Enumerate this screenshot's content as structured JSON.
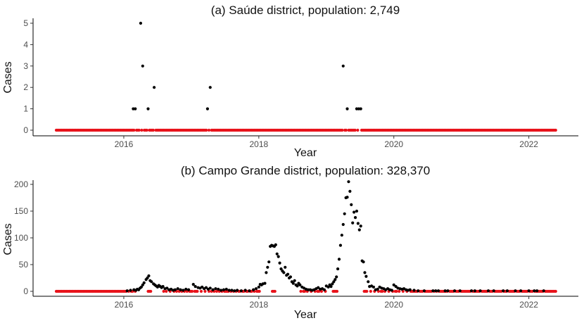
{
  "chart_data": [
    {
      "type": "scatter",
      "title": "(a) Saúde district, population: 2,749",
      "xlabel": "Year",
      "ylabel": "Cases",
      "x_range": [
        2015.0,
        2022.4
      ],
      "ylim": [
        0,
        5
      ],
      "x_ticks": [
        2016,
        2018,
        2020,
        2022
      ],
      "y_ticks": [
        0,
        1,
        2,
        3,
        4,
        5
      ],
      "grid": false,
      "legend": "none",
      "zero_color": "#e8131b",
      "point_color": "#000000",
      "zero_weeks_span": [
        2015.0,
        2022.4
      ],
      "series": [
        {
          "values": [
            [
              2016.14,
              1
            ],
            [
              2016.17,
              1
            ],
            [
              2016.25,
              5
            ],
            [
              2016.28,
              3
            ],
            [
              2016.36,
              1
            ],
            [
              2016.45,
              2
            ],
            [
              2017.24,
              1
            ],
            [
              2017.28,
              2
            ],
            [
              2019.25,
              3
            ],
            [
              2019.31,
              1
            ],
            [
              2019.45,
              1
            ],
            [
              2019.48,
              1
            ],
            [
              2019.51,
              1
            ]
          ]
        }
      ]
    },
    {
      "type": "scatter",
      "title": "(b) Campo Grande district, population: 328,370",
      "xlabel": "Year",
      "ylabel": "Cases",
      "x_range": [
        2015.0,
        2022.4
      ],
      "ylim": [
        0,
        215
      ],
      "x_ticks": [
        2016,
        2018,
        2020,
        2022
      ],
      "y_ticks": [
        0,
        50,
        100,
        150,
        200
      ],
      "grid": false,
      "legend": "none",
      "zero_color": "#e8131b",
      "point_color": "#000000",
      "series": [
        {
          "values": [
            [
              2016.05,
              1
            ],
            [
              2016.1,
              2
            ],
            [
              2016.15,
              3
            ],
            [
              2016.18,
              2
            ],
            [
              2016.2,
              4
            ],
            [
              2016.22,
              3
            ],
            [
              2016.24,
              6
            ],
            [
              2016.26,
              8
            ],
            [
              2016.28,
              12
            ],
            [
              2016.3,
              16
            ],
            [
              2016.33,
              22
            ],
            [
              2016.35,
              25
            ],
            [
              2016.37,
              29
            ],
            [
              2016.39,
              20
            ],
            [
              2016.41,
              18
            ],
            [
              2016.44,
              14
            ],
            [
              2016.46,
              12
            ],
            [
              2016.48,
              10
            ],
            [
              2016.5,
              8
            ],
            [
              2016.52,
              11
            ],
            [
              2016.54,
              9
            ],
            [
              2016.56,
              7
            ],
            [
              2016.58,
              9
            ],
            [
              2016.61,
              5
            ],
            [
              2016.64,
              6
            ],
            [
              2016.67,
              3
            ],
            [
              2016.7,
              4
            ],
            [
              2016.73,
              2
            ],
            [
              2016.76,
              3
            ],
            [
              2016.8,
              5
            ],
            [
              2016.84,
              3
            ],
            [
              2016.88,
              2
            ],
            [
              2016.92,
              4
            ],
            [
              2016.96,
              3
            ],
            [
              2017.03,
              13
            ],
            [
              2017.06,
              9
            ],
            [
              2017.1,
              7
            ],
            [
              2017.13,
              6
            ],
            [
              2017.16,
              8
            ],
            [
              2017.19,
              5
            ],
            [
              2017.22,
              7
            ],
            [
              2017.25,
              4
            ],
            [
              2017.28,
              6
            ],
            [
              2017.32,
              3
            ],
            [
              2017.36,
              5
            ],
            [
              2017.4,
              4
            ],
            [
              2017.44,
              2
            ],
            [
              2017.48,
              3
            ],
            [
              2017.52,
              4
            ],
            [
              2017.56,
              2
            ],
            [
              2017.6,
              2
            ],
            [
              2017.64,
              1
            ],
            [
              2017.68,
              2
            ],
            [
              2017.74,
              1
            ],
            [
              2017.8,
              2
            ],
            [
              2017.86,
              1
            ],
            [
              2017.92,
              3
            ],
            [
              2017.96,
              5
            ],
            [
              2018.0,
              8
            ],
            [
              2018.02,
              13
            ],
            [
              2018.04,
              12
            ],
            [
              2018.06,
              14
            ],
            [
              2018.09,
              15
            ],
            [
              2018.11,
              35
            ],
            [
              2018.13,
              45
            ],
            [
              2018.15,
              55
            ],
            [
              2018.17,
              84
            ],
            [
              2018.19,
              86
            ],
            [
              2018.21,
              85
            ],
            [
              2018.23,
              84
            ],
            [
              2018.25,
              87
            ],
            [
              2018.27,
              70
            ],
            [
              2018.29,
              65
            ],
            [
              2018.31,
              53
            ],
            [
              2018.33,
              42
            ],
            [
              2018.35,
              38
            ],
            [
              2018.37,
              35
            ],
            [
              2018.39,
              45
            ],
            [
              2018.41,
              30
            ],
            [
              2018.43,
              32
            ],
            [
              2018.45,
              25
            ],
            [
              2018.47,
              27
            ],
            [
              2018.49,
              18
            ],
            [
              2018.51,
              15
            ],
            [
              2018.53,
              20
            ],
            [
              2018.55,
              12
            ],
            [
              2018.57,
              10
            ],
            [
              2018.59,
              15
            ],
            [
              2018.61,
              12
            ],
            [
              2018.64,
              8
            ],
            [
              2018.67,
              6
            ],
            [
              2018.7,
              4
            ],
            [
              2018.73,
              3
            ],
            [
              2018.76,
              3
            ],
            [
              2018.79,
              2
            ],
            [
              2018.82,
              3
            ],
            [
              2018.85,
              5
            ],
            [
              2018.88,
              7
            ],
            [
              2018.91,
              4
            ],
            [
              2018.94,
              5
            ],
            [
              2018.97,
              3
            ],
            [
              2019.0,
              10
            ],
            [
              2019.03,
              8
            ],
            [
              2019.05,
              12
            ],
            [
              2019.07,
              9
            ],
            [
              2019.09,
              14
            ],
            [
              2019.11,
              18
            ],
            [
              2019.13,
              22
            ],
            [
              2019.15,
              27
            ],
            [
              2019.17,
              42
            ],
            [
              2019.19,
              60
            ],
            [
              2019.21,
              86
            ],
            [
              2019.23,
              105
            ],
            [
              2019.25,
              125
            ],
            [
              2019.27,
              145
            ],
            [
              2019.29,
              175
            ],
            [
              2019.31,
              176
            ],
            [
              2019.33,
              205
            ],
            [
              2019.35,
              187
            ],
            [
              2019.37,
              162
            ],
            [
              2019.39,
              128
            ],
            [
              2019.41,
              148
            ],
            [
              2019.43,
              138
            ],
            [
              2019.45,
              150
            ],
            [
              2019.47,
              127
            ],
            [
              2019.49,
              115
            ],
            [
              2019.51,
              122
            ],
            [
              2019.53,
              57
            ],
            [
              2019.55,
              55
            ],
            [
              2019.57,
              35
            ],
            [
              2019.59,
              28
            ],
            [
              2019.62,
              18
            ],
            [
              2019.64,
              9
            ],
            [
              2019.67,
              10
            ],
            [
              2019.7,
              8
            ],
            [
              2019.73,
              3
            ],
            [
              2019.76,
              4
            ],
            [
              2019.79,
              8
            ],
            [
              2019.82,
              6
            ],
            [
              2019.85,
              5
            ],
            [
              2019.88,
              3
            ],
            [
              2019.91,
              5
            ],
            [
              2019.94,
              3
            ],
            [
              2019.97,
              2
            ],
            [
              2020.0,
              12
            ],
            [
              2020.03,
              9
            ],
            [
              2020.06,
              6
            ],
            [
              2020.09,
              5
            ],
            [
              2020.12,
              4
            ],
            [
              2020.15,
              5
            ],
            [
              2020.18,
              3
            ],
            [
              2020.21,
              2
            ],
            [
              2020.24,
              3
            ],
            [
              2020.3,
              2
            ],
            [
              2020.36,
              1
            ],
            [
              2020.45,
              1
            ],
            [
              2020.58,
              1
            ],
            [
              2020.62,
              1
            ],
            [
              2020.66,
              1
            ],
            [
              2020.76,
              1
            ],
            [
              2020.8,
              1
            ],
            [
              2020.9,
              1
            ],
            [
              2020.98,
              1
            ],
            [
              2021.15,
              1
            ],
            [
              2021.2,
              1
            ],
            [
              2021.28,
              1
            ],
            [
              2021.4,
              1
            ],
            [
              2021.48,
              1
            ],
            [
              2021.62,
              1
            ],
            [
              2021.68,
              1
            ],
            [
              2021.8,
              1
            ],
            [
              2021.88,
              1
            ],
            [
              2022.0,
              1
            ],
            [
              2022.08,
              1
            ],
            [
              2022.12,
              1
            ],
            [
              2022.22,
              1
            ]
          ]
        }
      ]
    }
  ]
}
